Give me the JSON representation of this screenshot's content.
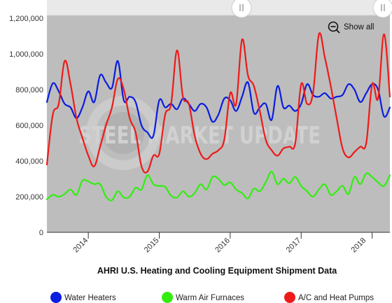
{
  "chart_data": {
    "type": "line",
    "title": "AHRI U.S. Heating and Cooling Equipment Shipment Data",
    "y_ticks": [
      0,
      200000,
      400000,
      600000,
      800000,
      1000000,
      1200000
    ],
    "y_tick_labels": [
      "0",
      "200,000",
      "400,000",
      "600,000",
      "800,000",
      "1,000,000",
      "1,200,000"
    ],
    "ylim": [
      0,
      1200000
    ],
    "x_range": [
      "2013-06",
      "2018-04"
    ],
    "x_ticks": [
      "2014-01",
      "2015-01",
      "2016-01",
      "2017-01",
      "2018-01"
    ],
    "x_tick_labels": [
      "2014",
      "2015",
      "2016",
      "2017",
      "2018"
    ],
    "x_label_dates": [
      "2014-01",
      "2015-01",
      "2016-01",
      "2017-01",
      "2017-12"
    ],
    "grid": false,
    "legend_position": "bottom",
    "show_all_label": "Show all",
    "watermark": "STEEL MARKET UPDATE",
    "series": [
      {
        "name": "Water Heaters",
        "color": "#0a1de0",
        "dates": [
          "2013-06",
          "2013-07",
          "2013-08",
          "2013-09",
          "2013-10",
          "2013-11",
          "2013-12",
          "2014-01",
          "2014-02",
          "2014-03",
          "2014-04",
          "2014-05",
          "2014-06",
          "2014-07",
          "2014-08",
          "2014-09",
          "2014-10",
          "2014-11",
          "2014-12",
          "2015-01",
          "2015-02",
          "2015-03",
          "2015-04",
          "2015-05",
          "2015-06",
          "2015-07",
          "2015-08",
          "2015-09",
          "2015-10",
          "2015-11",
          "2015-12",
          "2016-01",
          "2016-02",
          "2016-03",
          "2016-04",
          "2016-05",
          "2016-06",
          "2016-07",
          "2016-08",
          "2016-09",
          "2016-10",
          "2016-11",
          "2016-12",
          "2017-01",
          "2017-02",
          "2017-03",
          "2017-04",
          "2017-05",
          "2017-06",
          "2017-07",
          "2017-08",
          "2017-09",
          "2017-10",
          "2017-11",
          "2017-12",
          "2018-01",
          "2018-02",
          "2018-03",
          "2018-04"
        ],
        "values": [
          730000,
          835000,
          790000,
          720000,
          700000,
          640000,
          700000,
          790000,
          730000,
          880000,
          840000,
          810000,
          960000,
          740000,
          760000,
          730000,
          600000,
          560000,
          540000,
          740000,
          700000,
          720000,
          690000,
          750000,
          720000,
          680000,
          720000,
          700000,
          620000,
          660000,
          750000,
          740000,
          680000,
          760000,
          840000,
          670000,
          700000,
          720000,
          630000,
          820000,
          700000,
          710000,
          680000,
          720000,
          830000,
          770000,
          760000,
          780000,
          750000,
          760000,
          770000,
          830000,
          800000,
          730000,
          780000,
          830000,
          800000,
          650000,
          700000
        ]
      },
      {
        "name": "Warm Air Furnaces",
        "color": "#32ee10",
        "dates": [
          "2013-06",
          "2013-07",
          "2013-08",
          "2013-09",
          "2013-10",
          "2013-11",
          "2013-12",
          "2014-01",
          "2014-02",
          "2014-03",
          "2014-04",
          "2014-05",
          "2014-06",
          "2014-07",
          "2014-08",
          "2014-09",
          "2014-10",
          "2014-11",
          "2014-12",
          "2015-01",
          "2015-02",
          "2015-03",
          "2015-04",
          "2015-05",
          "2015-06",
          "2015-07",
          "2015-08",
          "2015-09",
          "2015-10",
          "2015-11",
          "2015-12",
          "2016-01",
          "2016-02",
          "2016-03",
          "2016-04",
          "2016-05",
          "2016-06",
          "2016-07",
          "2016-08",
          "2016-09",
          "2016-10",
          "2016-11",
          "2016-12",
          "2017-01",
          "2017-02",
          "2017-03",
          "2017-04",
          "2017-05",
          "2017-06",
          "2017-07",
          "2017-08",
          "2017-09",
          "2017-10",
          "2017-11",
          "2017-12",
          "2018-01",
          "2018-02",
          "2018-03",
          "2018-04"
        ],
        "values": [
          185000,
          210000,
          200000,
          215000,
          240000,
          210000,
          290000,
          285000,
          270000,
          270000,
          200000,
          180000,
          230000,
          195000,
          200000,
          250000,
          240000,
          320000,
          270000,
          260000,
          255000,
          205000,
          195000,
          230000,
          200000,
          220000,
          270000,
          240000,
          310000,
          300000,
          265000,
          280000,
          240000,
          220000,
          190000,
          245000,
          230000,
          280000,
          340000,
          270000,
          300000,
          275000,
          310000,
          260000,
          230000,
          200000,
          240000,
          270000,
          210000,
          230000,
          260000,
          215000,
          310000,
          270000,
          330000,
          310000,
          280000,
          260000,
          320000
        ]
      },
      {
        "name": "A/C and Heat Pumps",
        "color": "#ee1a1a",
        "dates": [
          "2013-06",
          "2013-07",
          "2013-08",
          "2013-09",
          "2013-10",
          "2013-11",
          "2013-12",
          "2014-01",
          "2014-02",
          "2014-03",
          "2014-04",
          "2014-05",
          "2014-06",
          "2014-07",
          "2014-08",
          "2014-09",
          "2014-10",
          "2014-11",
          "2014-12",
          "2015-01",
          "2015-02",
          "2015-03",
          "2015-04",
          "2015-05",
          "2015-06",
          "2015-07",
          "2015-08",
          "2015-09",
          "2015-10",
          "2015-11",
          "2015-12",
          "2016-01",
          "2016-02",
          "2016-03",
          "2016-04",
          "2016-05",
          "2016-06",
          "2016-07",
          "2016-08",
          "2016-09",
          "2016-10",
          "2016-11",
          "2016-12",
          "2017-01",
          "2017-02",
          "2017-03",
          "2017-04",
          "2017-05",
          "2017-06",
          "2017-07",
          "2017-08",
          "2017-09",
          "2017-10",
          "2017-11",
          "2017-12",
          "2018-01",
          "2018-02",
          "2018-03",
          "2018-04"
        ],
        "values": [
          380000,
          660000,
          720000,
          960000,
          830000,
          640000,
          530000,
          430000,
          370000,
          480000,
          600000,
          700000,
          860000,
          800000,
          640000,
          560000,
          370000,
          340000,
          430000,
          440000,
          660000,
          720000,
          1020000,
          760000,
          720000,
          540000,
          440000,
          410000,
          440000,
          460000,
          520000,
          780000,
          720000,
          1080000,
          880000,
          820000,
          680000,
          520000,
          460000,
          430000,
          470000,
          480000,
          500000,
          830000,
          720000,
          780000,
          1110000,
          980000,
          820000,
          640000,
          470000,
          420000,
          450000,
          480000,
          500000,
          830000,
          750000,
          1110000,
          760000
        ]
      }
    ]
  }
}
